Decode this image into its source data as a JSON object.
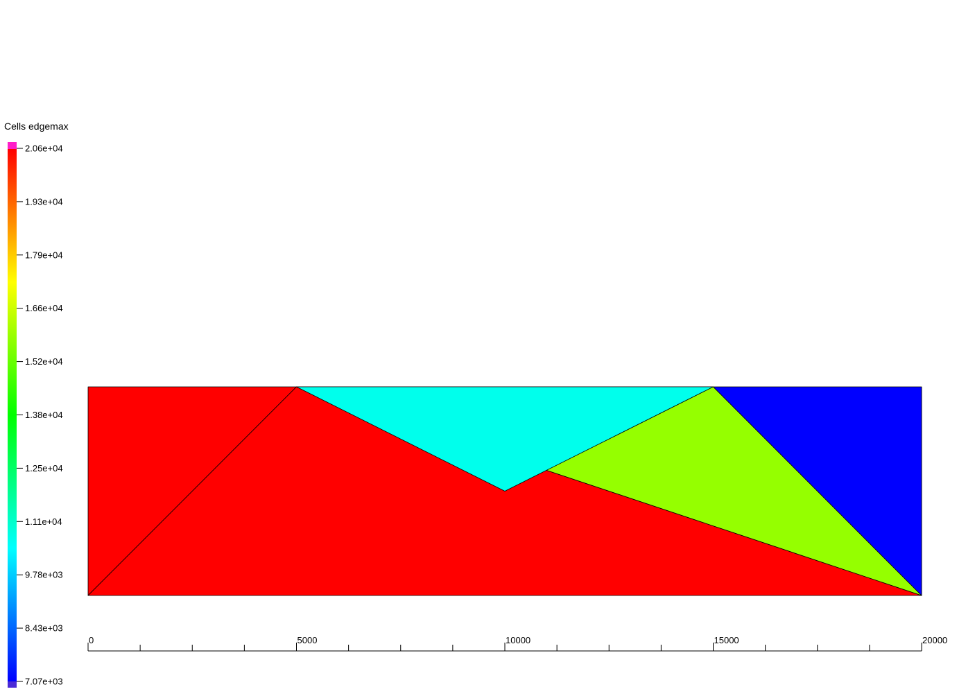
{
  "chart_data": {
    "type": "heatmap",
    "title": "",
    "colorbar": {
      "title": "Cells edgemax",
      "ticks": [
        "2.06e+04",
        "1.93e+04",
        "1.79e+04",
        "1.66e+04",
        "1.52e+04",
        "1.38e+04",
        "1.25e+04",
        "1.11e+04",
        "9.78e+03",
        "8.43e+03",
        "7.07e+03"
      ],
      "min": 7070,
      "max": 20600,
      "colors": [
        "#0000ff",
        "#0080ff",
        "#00ffff",
        "#00ff80",
        "#00ff00",
        "#80ff00",
        "#ffff00",
        "#ff8000",
        "#ff0000"
      ],
      "above_range_color": "#ff1ec8",
      "below_range_color": "#4a2ad6"
    },
    "x_axis": {
      "ticks": [
        "0",
        "5000",
        "10000",
        "15000",
        "20000"
      ],
      "range": [
        0,
        20000
      ],
      "minor_step": 1250
    },
    "mesh": {
      "nodes": [
        [
          0,
          0
        ],
        [
          5000,
          10000
        ],
        [
          10000,
          5000
        ],
        [
          0,
          10000
        ],
        [
          15000,
          10000
        ],
        [
          20000,
          10000
        ],
        [
          20000,
          0
        ]
      ],
      "cells": [
        {
          "nodes": [
            0,
            1,
            3
          ],
          "value": 20600
        },
        {
          "nodes": [
            0,
            6,
            1
          ],
          "value": 20600
        },
        {
          "nodes": [
            1,
            6,
            4
          ],
          "value": 15800
        },
        {
          "nodes": [
            4,
            6,
            5
          ],
          "value": 7070
        },
        {
          "nodes": [
            1,
            4,
            2
          ],
          "value": 10700
        }
      ],
      "edge_color": "#000000"
    }
  }
}
